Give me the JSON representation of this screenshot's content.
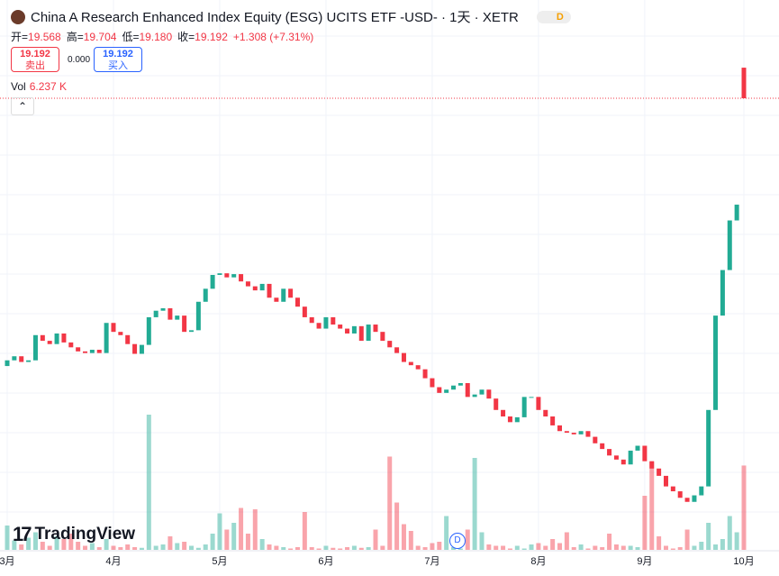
{
  "header": {
    "title": "China A Research Enhanced Index Equity (ESG) UCITS ETF -USD- · 1天 · XETR",
    "badge": "D",
    "ohlc": [
      {
        "label": "开=",
        "value": "19.568"
      },
      {
        "label": "高=",
        "value": "19.704"
      },
      {
        "label": "低=",
        "value": "19.180"
      },
      {
        "label": "收=",
        "value": "19.192"
      }
    ],
    "change": "+1.308 (+7.31%)",
    "sell_price": "19.192",
    "sell_label": "卖出",
    "spread": "0.000",
    "buy_price": "19.192",
    "buy_label": "买入",
    "vol_label": "Vol",
    "vol_value": "6.237 K"
  },
  "watermark": "TradingView",
  "event_marker": "D",
  "chart_data": {
    "type": "candlestick",
    "categories": [
      "3月",
      null,
      null,
      null,
      null,
      null,
      null,
      null,
      null,
      null,
      null,
      null,
      null,
      null,
      null,
      "4月",
      null,
      null,
      null,
      null,
      null,
      null,
      null,
      null,
      null,
      null,
      null,
      null,
      null,
      null,
      "5月",
      null,
      null,
      null,
      null,
      null,
      null,
      null,
      null,
      null,
      null,
      null,
      null,
      null,
      null,
      "6月",
      null,
      null,
      null,
      null,
      null,
      null,
      null,
      null,
      null,
      null,
      null,
      null,
      null,
      null,
      "7月",
      null,
      null,
      null,
      null,
      null,
      null,
      null,
      null,
      null,
      null,
      null,
      null,
      null,
      null,
      "8月",
      null,
      null,
      null,
      null,
      null,
      null,
      null,
      null,
      null,
      null,
      null,
      null,
      null,
      null,
      "9月",
      null,
      null,
      null,
      null,
      null,
      null,
      null,
      null,
      null,
      null,
      null,
      null,
      null,
      "10月"
    ],
    "open": [
      15.9,
      15.97,
      16.02,
      15.95,
      15.97,
      16.28,
      16.21,
      16.17,
      16.3,
      16.19,
      16.13,
      16.08,
      16.06,
      16.1,
      16.06,
      16.43,
      16.32,
      16.28,
      16.17,
      16.05,
      16.16,
      16.5,
      16.58,
      16.61,
      16.47,
      16.52,
      16.32,
      16.34,
      16.69,
      16.85,
      17.02,
      17.04,
      16.99,
      17.03,
      16.94,
      16.88,
      16.83,
      16.91,
      16.74,
      16.69,
      16.85,
      16.74,
      16.63,
      16.5,
      16.43,
      16.36,
      16.5,
      16.41,
      16.36,
      16.3,
      16.39,
      16.21,
      16.41,
      16.32,
      16.21,
      16.13,
      16.06,
      15.95,
      15.91,
      15.86,
      15.75,
      15.64,
      15.57,
      15.61,
      15.66,
      15.69,
      15.52,
      15.55,
      15.61,
      15.5,
      15.36,
      15.28,
      15.21,
      15.27,
      15.52,
      15.52,
      15.36,
      15.28,
      15.17,
      15.1,
      15.08,
      15.06,
      15.1,
      15.03,
      14.95,
      14.88,
      14.8,
      14.75,
      14.69,
      14.86,
      14.92,
      14.73,
      14.64,
      14.55,
      14.42,
      14.36,
      14.28,
      14.23,
      14.31,
      14.42,
      15.36,
      16.52,
      17.08,
      17.69,
      19.568
    ],
    "close": [
      15.97,
      16.02,
      15.95,
      15.97,
      16.28,
      16.21,
      16.17,
      16.3,
      16.19,
      16.13,
      16.08,
      16.06,
      16.1,
      16.06,
      16.43,
      16.32,
      16.28,
      16.17,
      16.05,
      16.16,
      16.5,
      16.58,
      16.61,
      16.47,
      16.52,
      16.32,
      16.34,
      16.69,
      16.85,
      17.02,
      17.04,
      16.99,
      17.03,
      16.94,
      16.88,
      16.83,
      16.91,
      16.74,
      16.69,
      16.85,
      16.74,
      16.63,
      16.5,
      16.43,
      16.36,
      16.5,
      16.41,
      16.36,
      16.3,
      16.39,
      16.21,
      16.41,
      16.32,
      16.21,
      16.13,
      16.06,
      15.95,
      15.91,
      15.86,
      15.75,
      15.64,
      15.57,
      15.61,
      15.66,
      15.69,
      15.52,
      15.55,
      15.61,
      15.5,
      15.36,
      15.28,
      15.21,
      15.27,
      15.52,
      15.52,
      15.36,
      15.28,
      15.17,
      15.1,
      15.08,
      15.06,
      15.1,
      15.03,
      14.95,
      14.88,
      14.8,
      14.75,
      14.69,
      14.86,
      14.92,
      14.73,
      14.64,
      14.55,
      14.42,
      14.36,
      14.28,
      14.23,
      14.31,
      14.42,
      15.36,
      16.52,
      17.08,
      17.69,
      17.884,
      19.192
    ],
    "volume": [
      1800,
      700,
      400,
      900,
      1300,
      600,
      300,
      1000,
      800,
      1200,
      600,
      300,
      500,
      200,
      800,
      300,
      200,
      400,
      200,
      150,
      10000,
      300,
      400,
      1000,
      500,
      600,
      300,
      150,
      400,
      1200,
      2700,
      1500,
      2000,
      3100,
      1200,
      3000,
      800,
      400,
      300,
      200,
      100,
      200,
      2800,
      200,
      100,
      300,
      150,
      100,
      200,
      300,
      150,
      200,
      1500,
      300,
      6900,
      3500,
      1900,
      1400,
      300,
      200,
      500,
      600,
      2500,
      200,
      100,
      1500,
      6800,
      1300,
      400,
      300,
      300,
      100,
      300,
      100,
      400,
      500,
      300,
      800,
      500,
      1300,
      200,
      400,
      100,
      300,
      200,
      1200,
      400,
      300,
      300,
      200,
      4000,
      6500,
      1000,
      300,
      100,
      200,
      1500,
      300,
      600,
      2000,
      400,
      800,
      2500,
      1300,
      6237
    ],
    "ylim": [
      13.64,
      20.4
    ],
    "volume_lim": [
      0,
      40000
    ],
    "up_color": "#22ab94",
    "down_color": "#f23645",
    "grid": true
  }
}
